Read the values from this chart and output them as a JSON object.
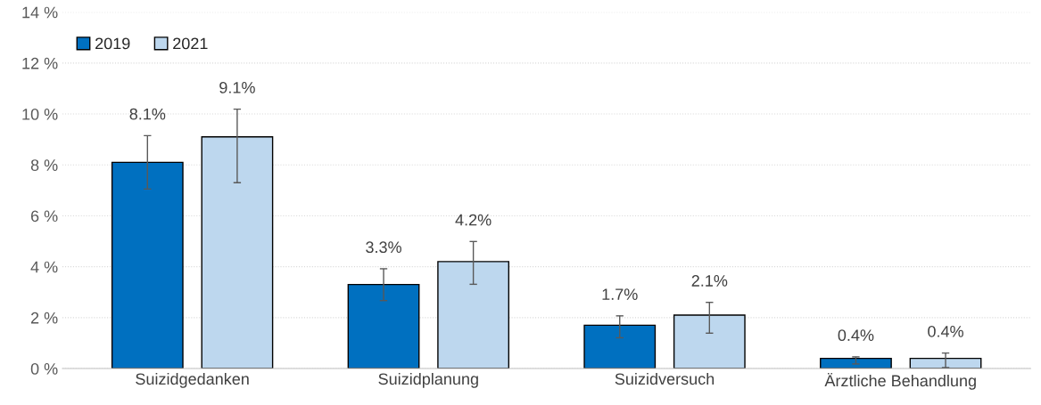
{
  "chart_data": {
    "type": "bar",
    "categories": [
      "Suizidgedanken",
      "Suizidplanung",
      "Suizidversuch",
      "Ärztliche Behandlung"
    ],
    "series": [
      {
        "name": "2019",
        "color": "#0070c0",
        "values": [
          8.1,
          3.3,
          1.7,
          0.4
        ],
        "value_labels": [
          "8.1%",
          "3.3%",
          "1.7%",
          "0.4%"
        ],
        "errors": [
          [
            7.05,
            9.15
          ],
          [
            2.67,
            3.92
          ],
          [
            1.21,
            2.07
          ],
          [
            0.18,
            0.46
          ]
        ]
      },
      {
        "name": "2021",
        "color": "#bdd7ee",
        "values": [
          9.1,
          4.2,
          2.1,
          0.4
        ],
        "value_labels": [
          "9.1%",
          "4.2%",
          "2.1%",
          "0.4%"
        ],
        "errors": [
          [
            7.3,
            10.19
          ],
          [
            3.31,
            4.99
          ],
          [
            1.39,
            2.6
          ],
          [
            0.04,
            0.61
          ]
        ]
      }
    ],
    "ylim": [
      0,
      14
    ],
    "yticks": [
      {
        "value": 0,
        "label": "0 %"
      },
      {
        "value": 2,
        "label": "2 %"
      },
      {
        "value": 4,
        "label": "4 %"
      },
      {
        "value": 6,
        "label": "6 %"
      },
      {
        "value": 8,
        "label": "8 %"
      },
      {
        "value": 10,
        "label": "10 %"
      },
      {
        "value": 12,
        "label": "12 %"
      },
      {
        "value": 14,
        "label": "14 %"
      }
    ],
    "grid": "y",
    "legend": "top left"
  }
}
